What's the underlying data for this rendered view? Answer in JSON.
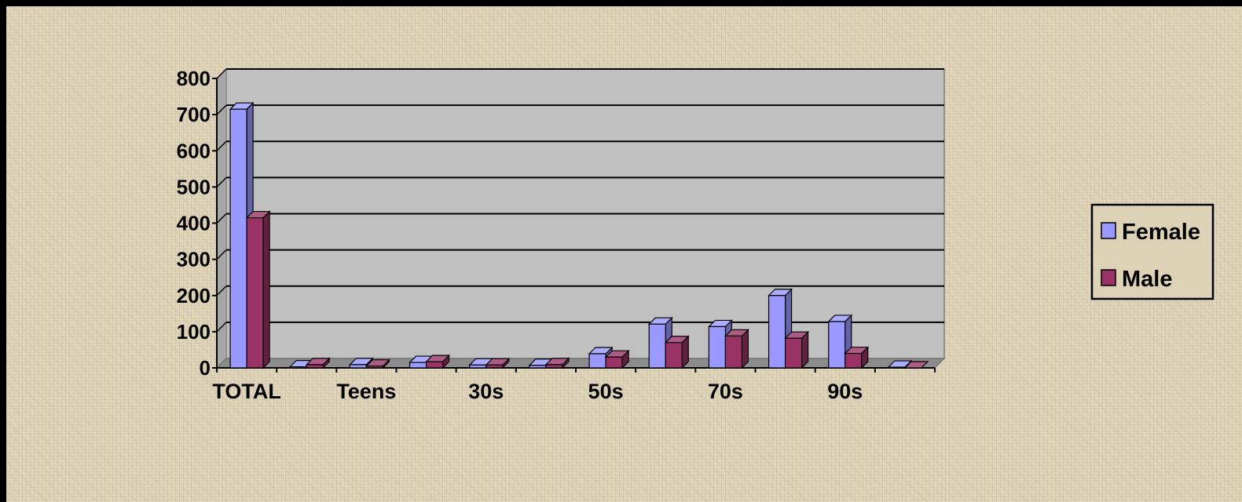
{
  "chart_data": {
    "type": "bar",
    "categories": [
      "TOTAL",
      "",
      "Teens",
      "",
      "30s",
      "",
      "50s",
      "",
      "70s",
      "",
      "90s",
      ""
    ],
    "series": [
      {
        "name": "Female",
        "color": "#9999ff",
        "values": [
          715,
          3,
          9,
          15,
          8,
          7,
          39,
          121,
          114,
          200,
          128,
          2
        ]
      },
      {
        "name": "Male",
        "color": "#993366",
        "values": [
          415,
          9,
          5,
          17,
          8,
          9,
          30,
          70,
          88,
          82,
          40,
          0
        ]
      }
    ],
    "yticks": [
      "0",
      "100",
      "200",
      "300",
      "400",
      "500",
      "600",
      "700",
      "800"
    ],
    "ylim": [
      0,
      800
    ],
    "grid": true,
    "legend": "right",
    "plot_background": "#c0c0c0",
    "page_background": "#ddd2b6"
  }
}
